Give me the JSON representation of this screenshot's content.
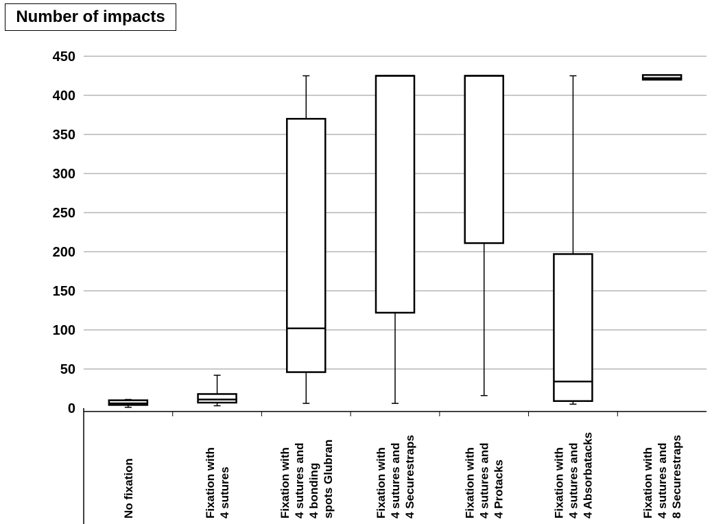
{
  "chart_data": {
    "type": "box",
    "title": "Number of impacts",
    "ylim": [
      0,
      450
    ],
    "yticks": [
      0,
      50,
      100,
      150,
      200,
      250,
      300,
      350,
      400,
      450
    ],
    "grid": true,
    "categories": [
      [
        "No fixation"
      ],
      [
        "Fixation with",
        "4 sutures"
      ],
      [
        "Fixation with",
        "4 sutures and",
        "4 bonding",
        "spots Glubran"
      ],
      [
        "Fixation with",
        "4 sutures and",
        "4 Securestraps"
      ],
      [
        "Fixation with",
        "4 sutures and",
        "4 Protacks"
      ],
      [
        "Fixation with",
        "4 sutures and",
        "4 Absorbatacks"
      ],
      [
        "Fixation with",
        "4 sutures and",
        "8 Securestraps"
      ]
    ],
    "boxes": [
      {
        "min": 1,
        "q1": 4,
        "median": 6,
        "q3": 10,
        "max": 11
      },
      {
        "min": 3,
        "q1": 7,
        "median": 11,
        "q3": 18,
        "max": 42
      },
      {
        "min": 6,
        "q1": 46,
        "median": 102,
        "q3": 370,
        "max": 425
      },
      {
        "min": 6,
        "q1": 122,
        "median": 425,
        "q3": 425,
        "max": 425
      },
      {
        "min": 16,
        "q1": 211,
        "median": 425,
        "q3": 425,
        "max": 425
      },
      {
        "min": 5,
        "q1": 9,
        "median": 34,
        "q3": 197,
        "max": 425
      },
      {
        "min": 420,
        "q1": 420,
        "median": 422,
        "q3": 426,
        "max": 426
      }
    ]
  }
}
